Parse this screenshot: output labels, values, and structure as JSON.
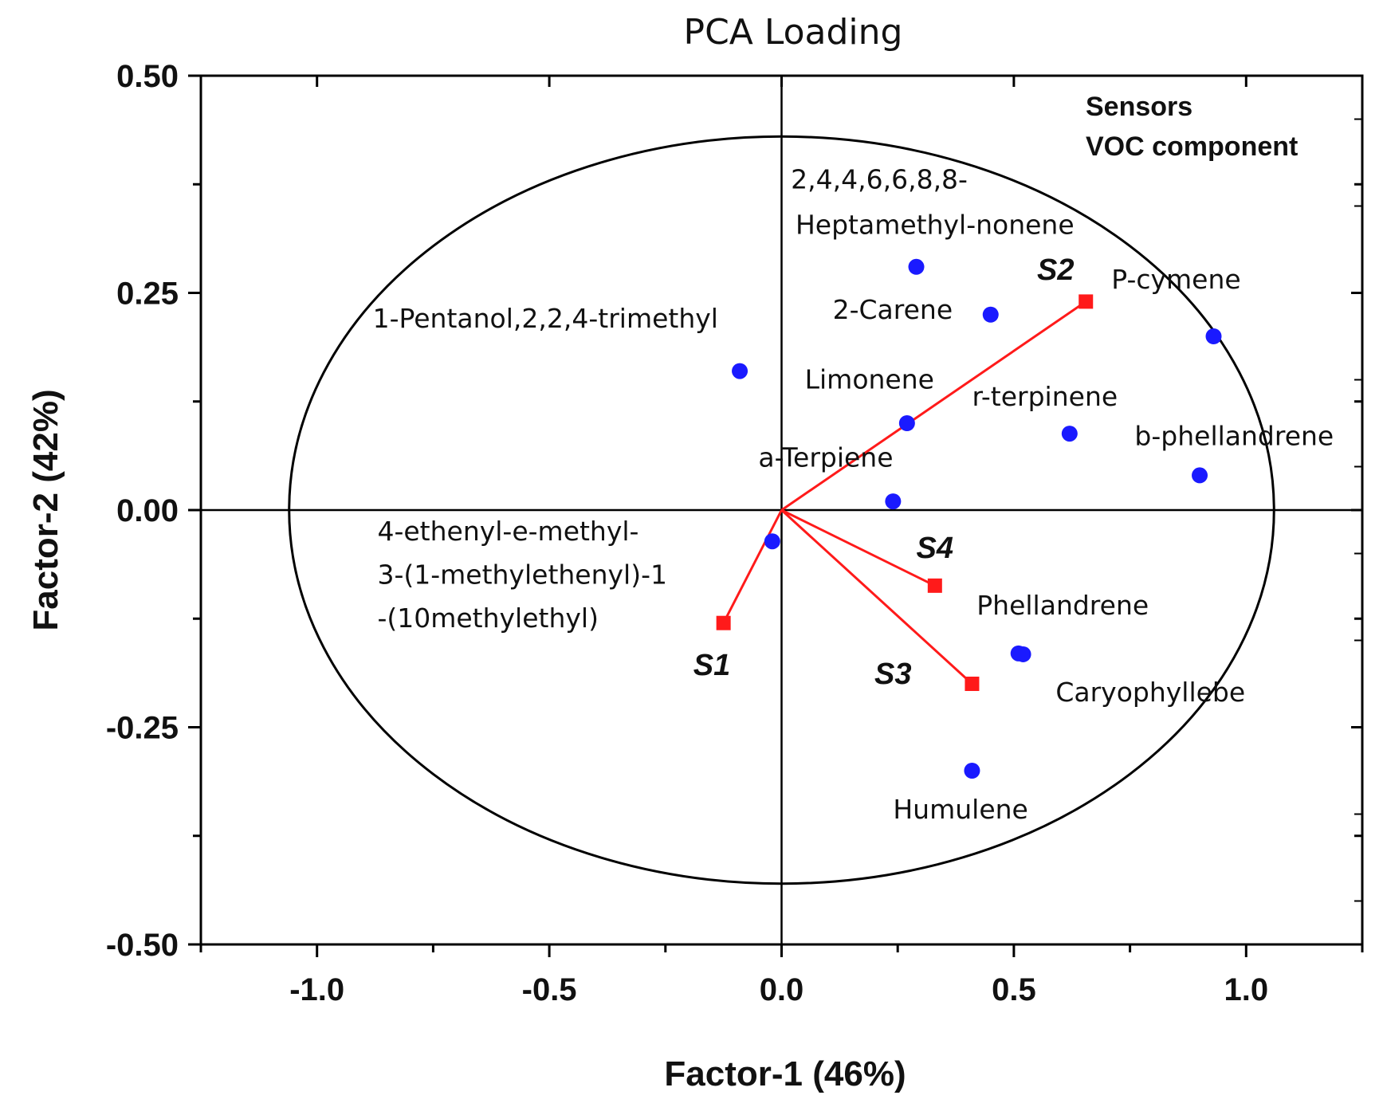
{
  "chart_data": {
    "type": "scatter",
    "title": "PCA Loading",
    "xlabel": "Factor-1 (46%)",
    "ylabel": "Factor-2 (42%)",
    "xlim": [
      -1.25,
      1.25
    ],
    "ylim": [
      -0.5,
      0.5
    ],
    "x_ticks": [
      {
        "value": -1.0,
        "label": "-1.0"
      },
      {
        "value": -0.5,
        "label": "-0.5"
      },
      {
        "value": 0.0,
        "label": "0.0"
      },
      {
        "value": 0.5,
        "label": "0.5"
      },
      {
        "value": 1.0,
        "label": "1.0"
      }
    ],
    "y_ticks": [
      {
        "value": 0.5,
        "label": "0.50"
      },
      {
        "value": 0.25,
        "label": "0.25"
      },
      {
        "value": 0.0,
        "label": "0.00"
      },
      {
        "value": -0.25,
        "label": "-0.25"
      },
      {
        "value": -0.5,
        "label": "-0.50"
      }
    ],
    "legend": {
      "placement": "top-right",
      "entries": [
        "Sensors",
        "VOC component"
      ]
    },
    "circle": {
      "rx": 1.06,
      "ry": 0.43
    },
    "voc_series": {
      "name": "VOC component",
      "color": "#1a1aff",
      "points": [
        {
          "x": 0.29,
          "y": 0.28
        },
        {
          "x": 0.45,
          "y": 0.225
        },
        {
          "x": -0.09,
          "y": 0.16
        },
        {
          "x": 0.93,
          "y": 0.2
        },
        {
          "x": 0.27,
          "y": 0.1
        },
        {
          "x": 0.62,
          "y": 0.088
        },
        {
          "x": 0.9,
          "y": 0.04
        },
        {
          "x": 0.24,
          "y": 0.01
        },
        {
          "x": -0.02,
          "y": -0.036
        },
        {
          "x": 0.51,
          "y": -0.165
        },
        {
          "x": 0.52,
          "y": -0.166
        },
        {
          "x": 0.41,
          "y": -0.3
        }
      ],
      "labels": [
        {
          "text": "2,4,4,6,6,8,8-",
          "x": 0.02,
          "y": 0.37
        },
        {
          "text": "Heptamethyl-nonene",
          "x": 0.03,
          "y": 0.318
        },
        {
          "text": "2-Carene",
          "x": 0.11,
          "y": 0.22
        },
        {
          "text": "1-Pentanol,2,2,4-trimethyl",
          "x": -0.88,
          "y": 0.21
        },
        {
          "text": "P-cymene",
          "x": 0.71,
          "y": 0.255
        },
        {
          "text": "Limonene",
          "x": 0.05,
          "y": 0.14
        },
        {
          "text": "r-terpinene",
          "x": 0.41,
          "y": 0.12
        },
        {
          "text": "b-phellandrene",
          "x": 0.76,
          "y": 0.075
        },
        {
          "text": "a-Terpiene",
          "x": -0.05,
          "y": 0.05
        },
        {
          "text": "4-ethenyl-e-methyl-",
          "x": -0.87,
          "y": -0.035
        },
        {
          "text": "3-(1-methylethenyl)-1",
          "x": -0.87,
          "y": -0.085
        },
        {
          "text": "-(10methylethyl)",
          "x": -0.87,
          "y": -0.135
        },
        {
          "text": "Phellandrene",
          "x": 0.42,
          "y": -0.12
        },
        {
          "text": "Caryophyllebe",
          "x": 0.59,
          "y": -0.22
        },
        {
          "text": "Humulene",
          "x": 0.24,
          "y": -0.355
        }
      ]
    },
    "sensors": {
      "name": "Sensors",
      "color": "#ff1a1a",
      "vectors": [
        {
          "label": "S1",
          "x": -0.125,
          "y": -0.13,
          "label_x": -0.19,
          "label_y": -0.19
        },
        {
          "label": "S2",
          "x": 0.655,
          "y": 0.24,
          "label_x": 0.55,
          "label_y": 0.265
        },
        {
          "label": "S3",
          "x": 0.41,
          "y": -0.2,
          "label_x": 0.2,
          "label_y": -0.2
        },
        {
          "label": "S4",
          "x": 0.33,
          "y": -0.087,
          "label_x": 0.29,
          "label_y": -0.055
        }
      ]
    }
  }
}
